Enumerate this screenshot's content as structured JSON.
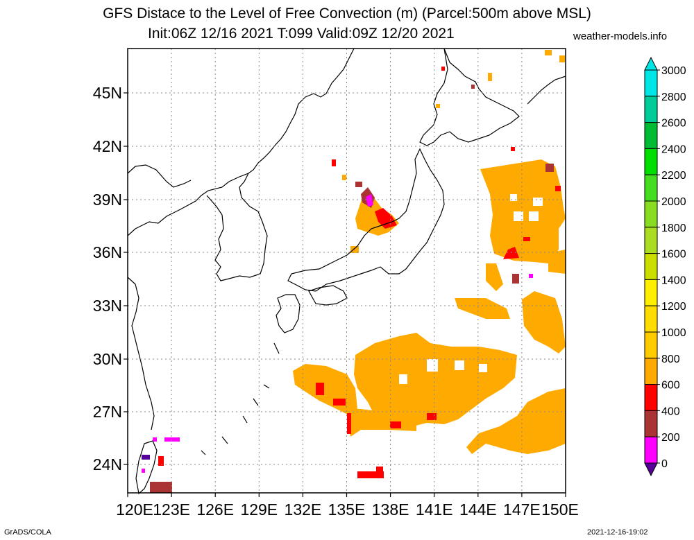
{
  "title": {
    "line1": "GFS Distace to the Level of Free Convection (m) (Parcel:500m above MSL)",
    "line2": "Init:06Z 12/16 2021 T:099 Valid:09Z 12/20 2021"
  },
  "site": "weather-models.info",
  "footer": {
    "left": "GrADS/COLA",
    "right": "2021-12-16-19:02"
  },
  "map": {
    "lat_labels": [
      "45N",
      "42N",
      "39N",
      "36N",
      "33N",
      "30N",
      "27N",
      "24N"
    ],
    "lon_labels": [
      "120E",
      "123E",
      "126E",
      "129E",
      "132E",
      "135E",
      "138E",
      "141E",
      "144E",
      "147E",
      "150E"
    ],
    "colors": {
      "yellow_orange": "#ffcc00",
      "orange": "#ffaa00",
      "red": "#ff0000",
      "brown": "#aa3333",
      "magenta": "#ff00ff",
      "purple": "#550099"
    }
  },
  "colorbar": {
    "labels": [
      "3000",
      "2800",
      "2600",
      "2400",
      "2200",
      "2000",
      "1800",
      "1600",
      "1400",
      "1200",
      "1000",
      "800",
      "600",
      "400",
      "200",
      "0"
    ],
    "colors": [
      "#00e6e6",
      "#00cc99",
      "#00bb33",
      "#00dd00",
      "#44dd22",
      "#88dd22",
      "#aadd22",
      "#ccdd00",
      "#ffee00",
      "#ffdd00",
      "#ffcc00",
      "#ffaa00",
      "#ff0000",
      "#aa3333",
      "#ff00ff",
      "#550099"
    ]
  }
}
